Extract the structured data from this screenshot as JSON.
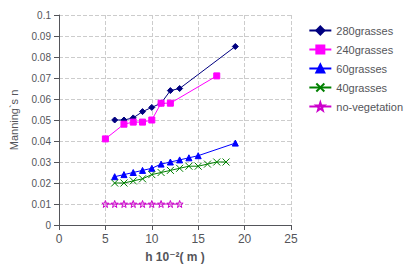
{
  "chart_data": {
    "type": "line",
    "xlabel": "h 10⁻²( m )",
    "ylabel": "Manning`s n",
    "series": [
      {
        "name": "280grasses",
        "color": "#000080",
        "marker": "diamond",
        "x": [
          6,
          7,
          8,
          9,
          10,
          11,
          12,
          13,
          19
        ],
        "values": [
          0.05,
          0.05,
          0.051,
          0.054,
          0.056,
          0.058,
          0.064,
          0.065,
          0.085
        ]
      },
      {
        "name": "240grasses",
        "color": "#FF00FF",
        "marker": "square",
        "x": [
          5,
          7,
          8,
          9,
          10,
          11,
          12,
          17
        ],
        "values": [
          0.041,
          0.048,
          0.049,
          0.049,
          0.05,
          0.058,
          0.058,
          0.071
        ]
      },
      {
        "name": "60grasses",
        "color": "#0000FF",
        "marker": "triangle",
        "x": [
          6,
          7,
          8,
          9,
          10,
          11,
          12,
          13,
          14,
          15,
          19
        ],
        "values": [
          0.023,
          0.024,
          0.025,
          0.026,
          0.027,
          0.029,
          0.03,
          0.031,
          0.032,
          0.033,
          0.039
        ]
      },
      {
        "name": "40grasses",
        "color": "#008000",
        "marker": "x",
        "x": [
          6,
          7,
          8,
          9,
          10,
          11,
          12,
          13,
          14,
          15,
          16,
          17,
          18
        ],
        "values": [
          0.02,
          0.02,
          0.021,
          0.022,
          0.024,
          0.025,
          0.026,
          0.027,
          0.028,
          0.028,
          0.029,
          0.03,
          0.03
        ]
      },
      {
        "name": "no-vegetation",
        "color": "#CC00CC",
        "marker": "star",
        "x": [
          5,
          6,
          7,
          8,
          9,
          10,
          11,
          12,
          13
        ],
        "values": [
          0.01,
          0.01,
          0.01,
          0.01,
          0.01,
          0.01,
          0.01,
          0.01,
          0.01
        ]
      }
    ],
    "xlim": [
      0,
      25
    ],
    "xticks": [
      0,
      5,
      10,
      15,
      20,
      25
    ],
    "ylim": [
      0,
      0.1
    ],
    "yticks": [
      0,
      0.01,
      0.02,
      0.03,
      0.04,
      0.05,
      0.06,
      0.07,
      0.08,
      0.09,
      0.1
    ],
    "grid": true,
    "legend": "right"
  }
}
